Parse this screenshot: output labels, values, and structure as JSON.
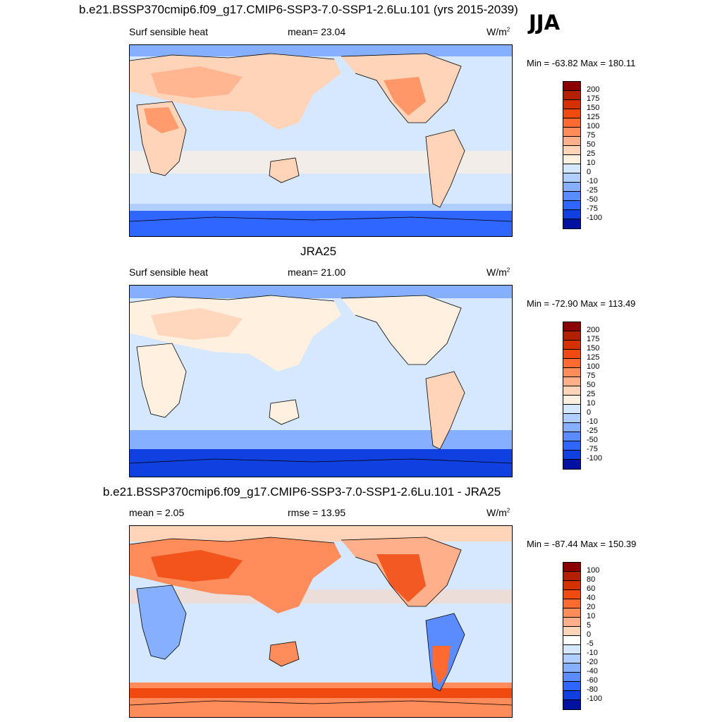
{
  "figure": {
    "main_title": "b.e21.BSSP370cmip6.f09_g17.CMIP6-SSP3-7.0-SSP1-2.6Lu.101 (yrs 2015-2039)",
    "season": "JJA"
  },
  "panels": [
    {
      "title": "",
      "left_label": "Surf sensible heat",
      "center_label": "mean=  23.04",
      "units_label": "W/m",
      "units_sup": "2",
      "minmax": "Min = -63.82 Max = 180.11",
      "levels": [
        "200",
        "175",
        "150",
        "125",
        "100",
        "75",
        "50",
        "25",
        "10",
        "0",
        "-10",
        "-25",
        "-50",
        "-75",
        "-100"
      ],
      "colors": [
        "#8b0000",
        "#b22000",
        "#d43000",
        "#f04a10",
        "#ff6a30",
        "#ff8c5a",
        "#ffb08a",
        "#ffd4b8",
        "#fff0e0",
        "#d6e8ff",
        "#b0ceff",
        "#86b0ff",
        "#5a8cff",
        "#2e66ff",
        "#1040e0",
        "#0010a0"
      ]
    },
    {
      "title": "JRA25",
      "left_label": "Surf sensible heat",
      "center_label": "mean=  21.00",
      "units_label": "W/m",
      "units_sup": "2",
      "minmax": "Min = -72.90 Max = 113.49",
      "levels": [
        "200",
        "175",
        "150",
        "125",
        "100",
        "75",
        "50",
        "25",
        "10",
        "0",
        "-10",
        "-25",
        "-50",
        "-75",
        "-100"
      ],
      "colors": [
        "#8b0000",
        "#b22000",
        "#d43000",
        "#f04a10",
        "#ff6a30",
        "#ff8c5a",
        "#ffb08a",
        "#ffd4b8",
        "#fff0e0",
        "#d6e8ff",
        "#b0ceff",
        "#86b0ff",
        "#5a8cff",
        "#2e66ff",
        "#1040e0",
        "#0010a0"
      ]
    },
    {
      "title": "b.e21.BSSP370cmip6.f09_g17.CMIP6-SSP3-7.0-SSP1-2.6Lu.101 - JRA25",
      "left_label": "mean =   2.05",
      "center_label": "rmse =  13.95",
      "units_label": "W/m",
      "units_sup": "2",
      "minmax": "Min = -87.44 Max = 150.39",
      "levels": [
        "100",
        "80",
        "60",
        "40",
        "20",
        "10",
        "5",
        "0",
        "-5",
        "-10",
        "-20",
        "-40",
        "-60",
        "-80",
        "-100"
      ],
      "colors": [
        "#8b0000",
        "#b22000",
        "#d43000",
        "#f04a10",
        "#ff6a30",
        "#ff8c5a",
        "#ffb08a",
        "#ffd4b8",
        "#ffffff",
        "#d6e8ff",
        "#b0ceff",
        "#86b0ff",
        "#5a8cff",
        "#2e66ff",
        "#1040e0",
        "#0010a0"
      ]
    }
  ]
}
